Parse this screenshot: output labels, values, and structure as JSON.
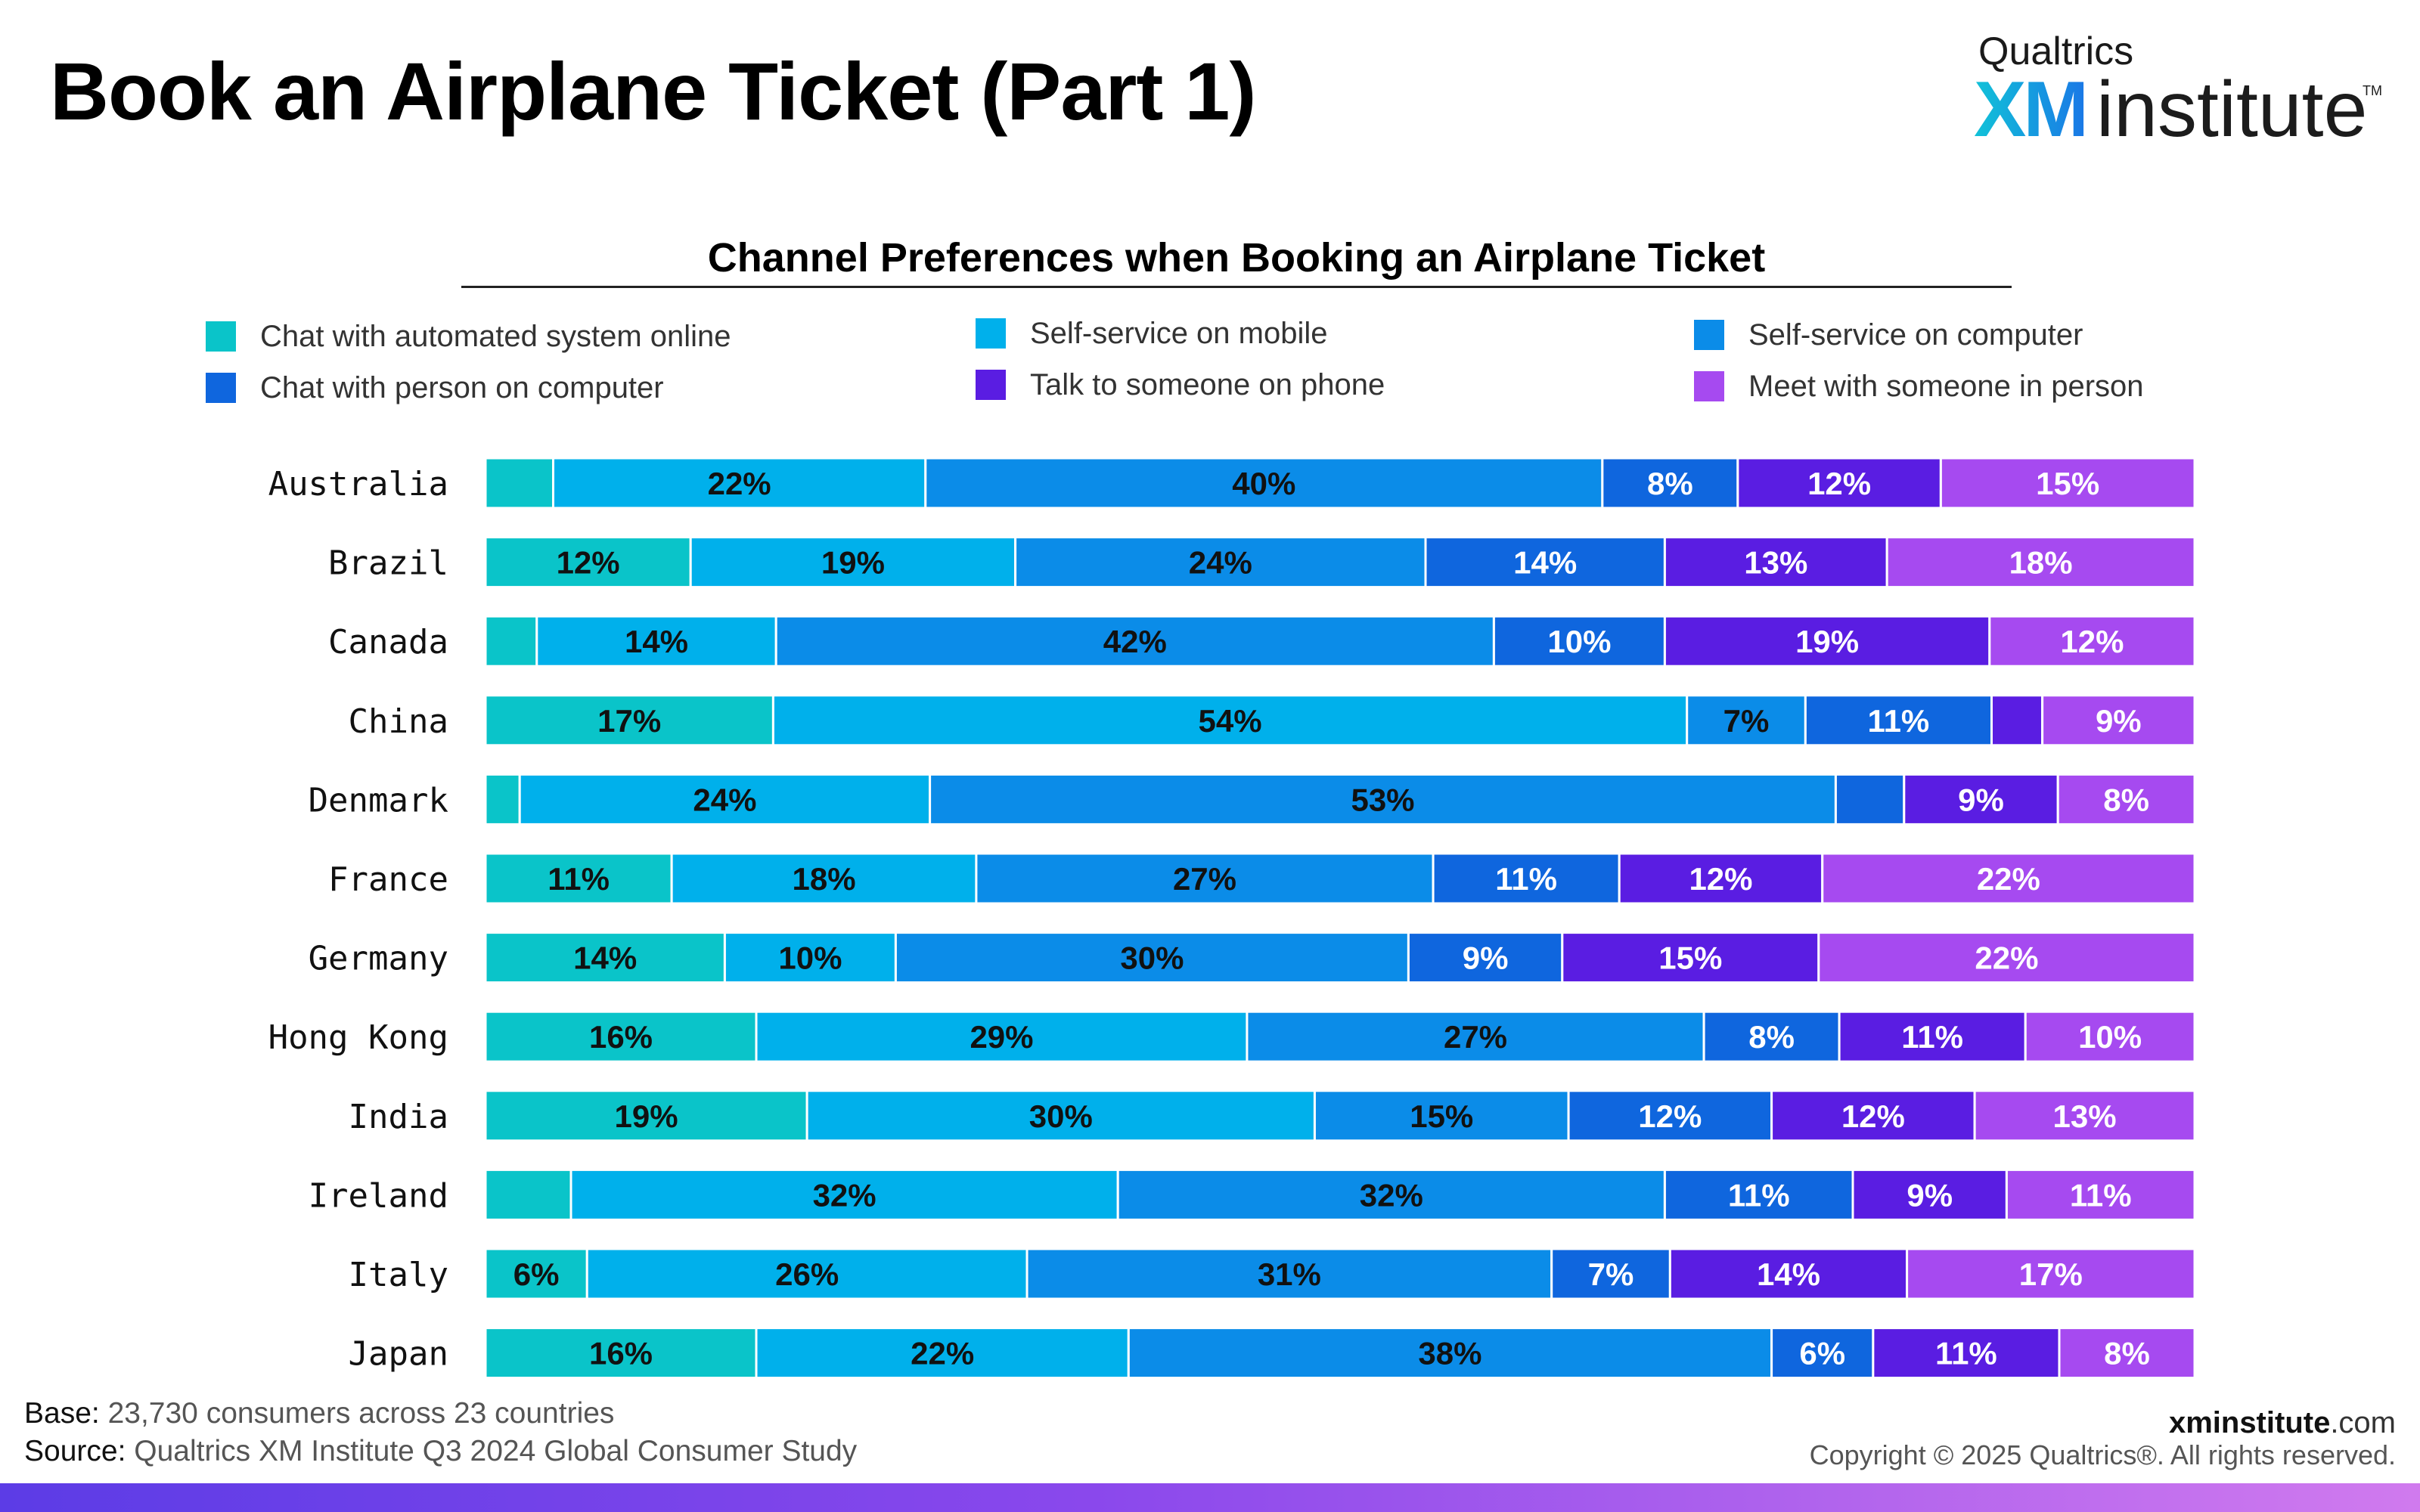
{
  "page": {
    "title": "Book an Airplane Ticket (Part 1)",
    "logo_small": "Qualtrics",
    "logo_xm": "XM",
    "logo_rest": "institute",
    "logo_tm": "TM"
  },
  "footer": {
    "base_label": "Base:",
    "base_text": " 23,730 consumers across 23 countries",
    "source_label": "Source:",
    "source_text": " Qualtrics XM Institute Q3 2024 Global Consumer Study",
    "site_bold": "xminstitute",
    "site_suffix": ".com",
    "copyright": "Copyright © 2025 Qualtrics®. All rights reserved."
  },
  "chart_data": {
    "type": "bar",
    "orientation": "horizontal",
    "stacked": "100%",
    "title": "Channel Preferences when Booking an Airplane Ticket",
    "legend_position": "top",
    "categories": [
      "Australia",
      "Brazil",
      "Canada",
      "China",
      "Denmark",
      "France",
      "Germany",
      "Hong Kong",
      "India",
      "Ireland",
      "Italy",
      "Japan"
    ],
    "series": [
      {
        "name": "Chat with automated system online",
        "color": "#0ac4c9",
        "values": [
          4,
          12,
          3,
          17,
          2,
          11,
          14,
          16,
          19,
          5,
          6,
          16
        ]
      },
      {
        "name": "Self-service on mobile",
        "color": "#00b0eb",
        "values": [
          22,
          19,
          14,
          54,
          24,
          18,
          10,
          29,
          30,
          32,
          26,
          22
        ]
      },
      {
        "name": "Self-service on computer",
        "color": "#0b8ce8",
        "values": [
          40,
          24,
          42,
          7,
          53,
          27,
          30,
          27,
          15,
          32,
          31,
          38
        ]
      },
      {
        "name": "Chat with person on computer",
        "color": "#0f66de",
        "values": [
          8,
          14,
          10,
          11,
          4,
          11,
          9,
          8,
          12,
          11,
          7,
          6
        ]
      },
      {
        "name": "Talk to someone on phone",
        "color": "#5a1de2",
        "values": [
          12,
          13,
          19,
          3,
          9,
          12,
          15,
          11,
          12,
          9,
          14,
          11
        ]
      },
      {
        "name": "Meet with someone in person",
        "color": "#a64af0",
        "values": [
          15,
          18,
          12,
          9,
          8,
          22,
          22,
          10,
          13,
          11,
          17,
          8
        ]
      }
    ],
    "labels": [
      [
        "",
        "22%",
        "40%",
        "8%",
        "12%",
        "15%"
      ],
      [
        "12%",
        "19%",
        "24%",
        "14%",
        "13%",
        "18%"
      ],
      [
        "",
        "14%",
        "42%",
        "10%",
        "19%",
        "12%"
      ],
      [
        "17%",
        "54%",
        "7%",
        "11%",
        "",
        "9%"
      ],
      [
        "",
        "24%",
        "53%",
        "",
        "9%",
        "8%"
      ],
      [
        "11%",
        "18%",
        "27%",
        "11%",
        "12%",
        "22%"
      ],
      [
        "14%",
        "10%",
        "30%",
        "9%",
        "15%",
        "22%"
      ],
      [
        "16%",
        "29%",
        "27%",
        "8%",
        "11%",
        "10%"
      ],
      [
        "19%",
        "30%",
        "15%",
        "12%",
        "12%",
        "13%"
      ],
      [
        "",
        "32%",
        "32%",
        "11%",
        "9%",
        "11%"
      ],
      [
        "6%",
        "26%",
        "31%",
        "7%",
        "14%",
        "17%"
      ],
      [
        "16%",
        "22%",
        "38%",
        "6%",
        "11%",
        "8%"
      ]
    ],
    "label_colors": [
      "#111111",
      "#111111",
      "#111111",
      "#ffffff",
      "#ffffff",
      "#ffffff"
    ]
  }
}
